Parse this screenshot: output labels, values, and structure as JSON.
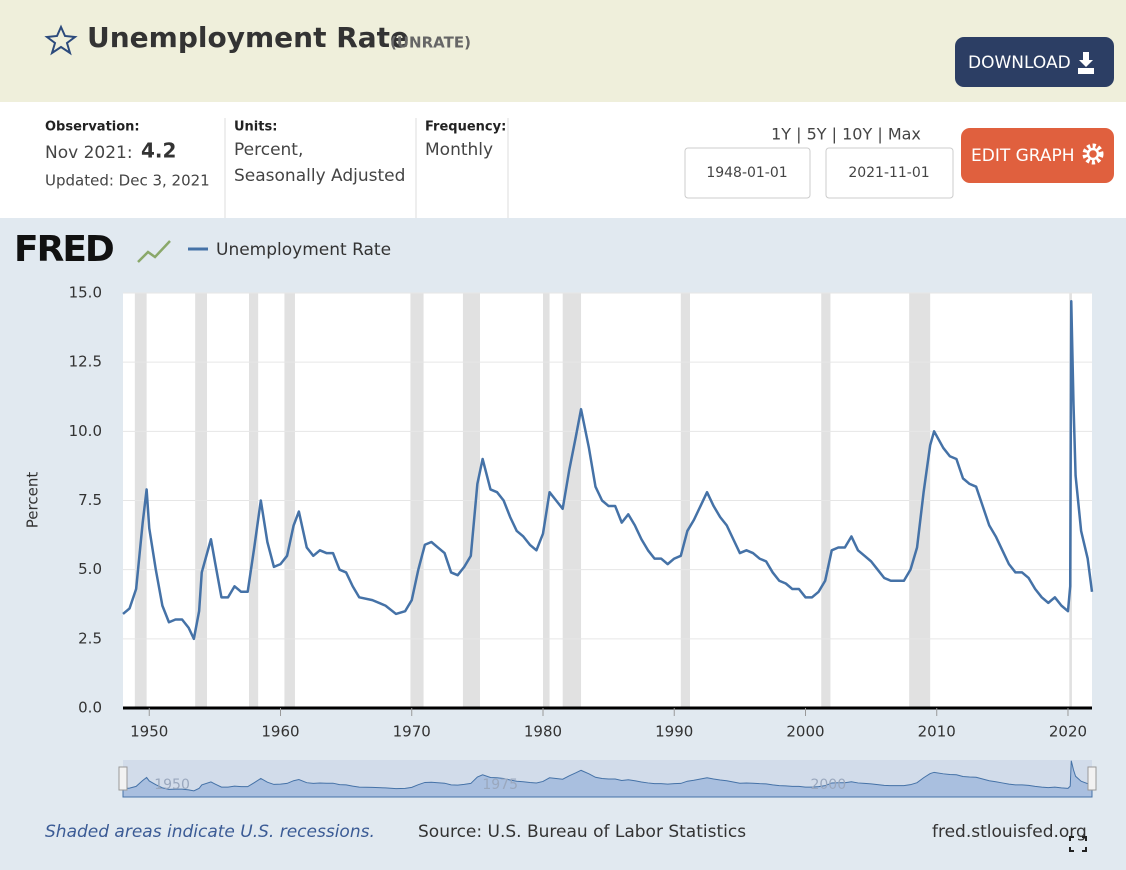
{
  "header": {
    "title": "Unemployment Rate",
    "code": "(UNRATE)",
    "download": "DOWNLOAD"
  },
  "meta": {
    "observation_label": "Observation:",
    "observation_date": "Nov 2021:",
    "observation_value": "4.2",
    "updated": "Updated: Dec 3, 2021",
    "units_label": "Units:",
    "units": [
      "Percent,",
      "Seasonally Adjusted"
    ],
    "frequency_label": "Frequency:",
    "frequency": "Monthly"
  },
  "controls": {
    "ranges": "1Y | 5Y | 10Y | Max",
    "start": "1948-01-01",
    "end": "2021-11-01",
    "edit": "EDIT GRAPH"
  },
  "chart_data": {
    "type": "line",
    "logo": "FRED",
    "ylabel": "Percent",
    "x": [
      1948.0,
      1948.5,
      1949.0,
      1949.5,
      1949.8,
      1950.0,
      1950.5,
      1951.0,
      1951.5,
      1952.0,
      1952.5,
      1953.0,
      1953.4,
      1953.8,
      1954.0,
      1954.7,
      1955.0,
      1955.5,
      1956.0,
      1956.5,
      1957.0,
      1957.5,
      1958.0,
      1958.5,
      1959.0,
      1959.5,
      1960.0,
      1960.5,
      1961.0,
      1961.4,
      1962.0,
      1962.5,
      1963.0,
      1963.5,
      1964.0,
      1964.5,
      1965.0,
      1965.5,
      1966.0,
      1967.0,
      1968.0,
      1968.8,
      1969.5,
      1970.0,
      1970.5,
      1971.0,
      1971.5,
      1972.0,
      1972.5,
      1973.0,
      1973.5,
      1974.0,
      1974.5,
      1975.0,
      1975.4,
      1976.0,
      1976.5,
      1977.0,
      1977.5,
      1978.0,
      1978.5,
      1979.0,
      1979.5,
      1980.0,
      1980.5,
      1981.0,
      1981.5,
      1982.0,
      1982.5,
      1982.9,
      1983.5,
      1984.0,
      1984.5,
      1985.0,
      1985.5,
      1986.0,
      1986.5,
      1987.0,
      1987.5,
      1988.0,
      1988.5,
      1989.0,
      1989.5,
      1990.0,
      1990.5,
      1991.0,
      1991.5,
      1992.0,
      1992.5,
      1993.0,
      1993.5,
      1994.0,
      1994.5,
      1995.0,
      1995.5,
      1996.0,
      1996.5,
      1997.0,
      1997.5,
      1998.0,
      1998.5,
      1999.0,
      1999.5,
      2000.0,
      2000.5,
      2001.0,
      2001.5,
      2002.0,
      2002.5,
      2003.0,
      2003.5,
      2004.0,
      2004.5,
      2005.0,
      2005.5,
      2006.0,
      2006.5,
      2007.0,
      2007.5,
      2008.0,
      2008.5,
      2009.0,
      2009.5,
      2009.8,
      2010.5,
      2011.0,
      2011.5,
      2012.0,
      2012.5,
      2013.0,
      2013.5,
      2014.0,
      2014.5,
      2015.0,
      2015.5,
      2016.0,
      2016.5,
      2017.0,
      2017.5,
      2018.0,
      2018.5,
      2019.0,
      2019.5,
      2020.0,
      2020.17,
      2020.25,
      2020.42,
      2020.58,
      2021.0,
      2021.5,
      2021.83
    ],
    "series": [
      {
        "name": "Unemployment Rate",
        "color": "#4572a7",
        "values": [
          3.4,
          3.6,
          4.3,
          6.7,
          7.9,
          6.5,
          5.0,
          3.7,
          3.1,
          3.2,
          3.2,
          2.9,
          2.5,
          3.5,
          4.9,
          6.1,
          5.3,
          4.0,
          4.0,
          4.4,
          4.2,
          4.2,
          5.8,
          7.5,
          6.0,
          5.1,
          5.2,
          5.5,
          6.6,
          7.1,
          5.8,
          5.5,
          5.7,
          5.6,
          5.6,
          5.0,
          4.9,
          4.4,
          4.0,
          3.9,
          3.7,
          3.4,
          3.5,
          3.9,
          5.0,
          5.9,
          6.0,
          5.8,
          5.6,
          4.9,
          4.8,
          5.1,
          5.5,
          8.1,
          9.0,
          7.9,
          7.8,
          7.5,
          6.9,
          6.4,
          6.2,
          5.9,
          5.7,
          6.3,
          7.8,
          7.5,
          7.2,
          8.6,
          9.8,
          10.8,
          9.4,
          8.0,
          7.5,
          7.3,
          7.3,
          6.7,
          7.0,
          6.6,
          6.1,
          5.7,
          5.4,
          5.4,
          5.2,
          5.4,
          5.5,
          6.4,
          6.8,
          7.3,
          7.8,
          7.3,
          6.9,
          6.6,
          6.1,
          5.6,
          5.7,
          5.6,
          5.4,
          5.3,
          4.9,
          4.6,
          4.5,
          4.3,
          4.3,
          4.0,
          4.0,
          4.2,
          4.6,
          5.7,
          5.8,
          5.8,
          6.2,
          5.7,
          5.5,
          5.3,
          5.0,
          4.7,
          4.6,
          4.6,
          4.6,
          5.0,
          5.8,
          7.8,
          9.5,
          10.0,
          9.4,
          9.1,
          9.0,
          8.3,
          8.1,
          8.0,
          7.3,
          6.6,
          6.2,
          5.7,
          5.2,
          4.9,
          4.9,
          4.7,
          4.3,
          4.0,
          3.8,
          4.0,
          3.7,
          3.5,
          4.4,
          14.7,
          11.0,
          8.4,
          6.4,
          5.4,
          4.2
        ]
      }
    ],
    "recessions": [
      [
        1948.9,
        1949.8
      ],
      [
        1953.5,
        1954.4
      ],
      [
        1957.6,
        1958.3
      ],
      [
        1960.3,
        1961.1
      ],
      [
        1969.9,
        1970.9
      ],
      [
        1973.9,
        1975.2
      ],
      [
        1980.0,
        1980.5
      ],
      [
        1981.5,
        1982.9
      ],
      [
        1990.5,
        1991.2
      ],
      [
        2001.2,
        2001.9
      ],
      [
        2007.9,
        2009.5
      ],
      [
        2020.1,
        2020.3
      ]
    ],
    "xlim": [
      1948.0,
      2021.83
    ],
    "xticks": [
      1950,
      1960,
      1970,
      1980,
      1990,
      2000,
      2010,
      2020
    ],
    "ylim": [
      0,
      15
    ],
    "yticks": [
      {
        "value": 0,
        "label": "0.0"
      },
      {
        "value": 2.5,
        "label": "2.5"
      },
      {
        "value": 5,
        "label": "5.0"
      },
      {
        "value": 7.5,
        "label": "7.5"
      },
      {
        "value": 10,
        "label": "10.0"
      },
      {
        "value": 12.5,
        "label": "12.5"
      },
      {
        "value": 15,
        "label": "15.0"
      }
    ],
    "grid": true,
    "navigator_ticks": [
      1950,
      1975,
      2000
    ],
    "note": "Shaded areas indicate U.S. recessions.",
    "source": "Source: U.S. Bureau of Labor Statistics",
    "site": "fred.stlouisfed.org"
  }
}
